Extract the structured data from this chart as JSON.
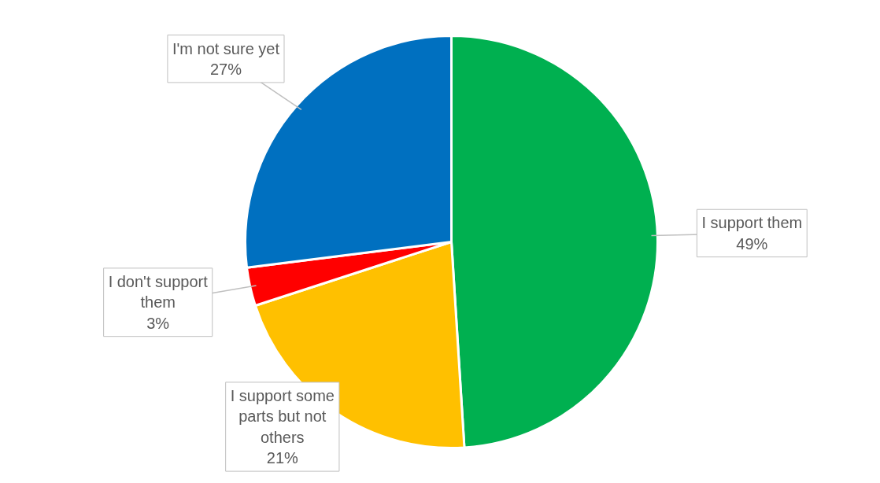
{
  "chart_data": {
    "type": "pie",
    "categories": [
      "I support them",
      "I support some parts but not others",
      "I don't support them",
      "I'm not sure yet"
    ],
    "values": [
      49,
      21,
      3,
      27
    ],
    "value_labels": [
      "49%",
      "21%",
      "3%",
      "27%"
    ],
    "colors": [
      "#00b050",
      "#ffc000",
      "#ff0000",
      "#0070c0"
    ]
  }
}
